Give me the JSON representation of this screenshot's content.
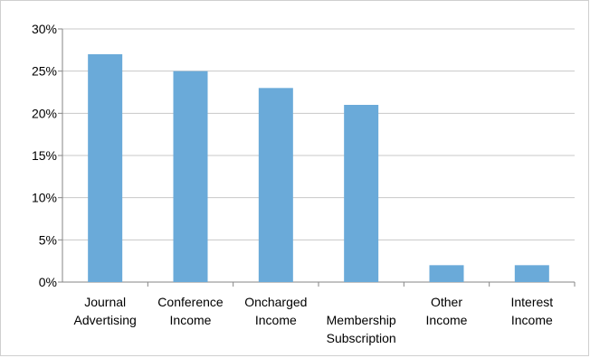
{
  "chart_data": {
    "type": "bar",
    "categories": [
      [
        "Journal",
        "Advertising"
      ],
      [
        "Conference",
        "Income"
      ],
      [
        "Oncharged",
        "Income"
      ],
      [
        "",
        "Membership",
        "Subscription"
      ],
      [
        "Other",
        "Income"
      ],
      [
        "Interest",
        "Income"
      ]
    ],
    "values": [
      27,
      25,
      23,
      21,
      2,
      2
    ],
    "unit": "%",
    "ylim": [
      0,
      30
    ],
    "yticks": [
      "0%",
      "5%",
      "10%",
      "15%",
      "20%",
      "25%",
      "30%"
    ],
    "grid": true,
    "legend": "none",
    "bar_color": "#6aaad9",
    "title": "",
    "xlabel": "",
    "ylabel": ""
  }
}
